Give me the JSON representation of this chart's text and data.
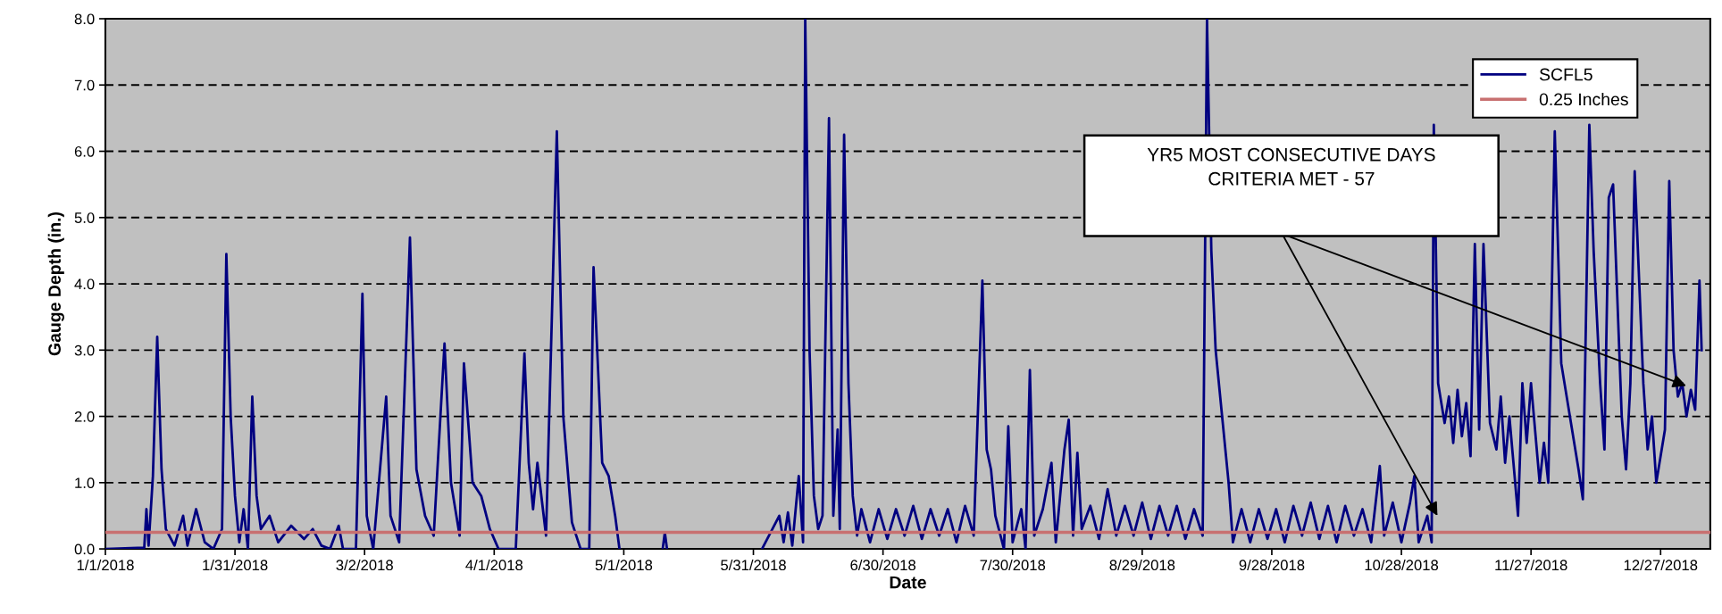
{
  "chart_data": {
    "type": "line",
    "xlabel": "Date",
    "ylabel": "Gauge Depth (in.)",
    "x": [
      "2018-01-01",
      "2018-01-10",
      "2018-01-10T12:00",
      "2018-01-11",
      "2018-01-12",
      "2018-01-13",
      "2018-01-14",
      "2018-01-15",
      "2018-01-17",
      "2018-01-19",
      "2018-01-20",
      "2018-01-22",
      "2018-01-24",
      "2018-01-26",
      "2018-01-28",
      "2018-01-29",
      "2018-01-30",
      "2018-01-31",
      "2018-02-01",
      "2018-02-02",
      "2018-02-03",
      "2018-02-04",
      "2018-02-05",
      "2018-02-06",
      "2018-02-08",
      "2018-02-10",
      "2018-02-13",
      "2018-02-16",
      "2018-02-18",
      "2018-02-20",
      "2018-02-22",
      "2018-02-24",
      "2018-02-25",
      "2018-02-28",
      "2018-03-01T12:00",
      "2018-03-02T12:00",
      "2018-03-04",
      "2018-03-07",
      "2018-03-08",
      "2018-03-10",
      "2018-03-12T12:00",
      "2018-03-14",
      "2018-03-16",
      "2018-03-18",
      "2018-03-20T12:00",
      "2018-03-22",
      "2018-03-24",
      "2018-03-25",
      "2018-03-27",
      "2018-03-29",
      "2018-03-31",
      "2018-04-02",
      "2018-04-06",
      "2018-04-08",
      "2018-04-09",
      "2018-04-10",
      "2018-04-11",
      "2018-04-13",
      "2018-04-15T12:00",
      "2018-04-17",
      "2018-04-19",
      "2018-04-21",
      "2018-04-23",
      "2018-04-24",
      "2018-04-26",
      "2018-04-27T12:00",
      "2018-04-29",
      "2018-04-30",
      "2018-05-05",
      "2018-05-10",
      "2018-05-10T12:00",
      "2018-05-11",
      "2018-05-20",
      "2018-06-02",
      "2018-06-06",
      "2018-06-07",
      "2018-06-08",
      "2018-06-09",
      "2018-06-10T12:00",
      "2018-06-11T12:00",
      "2018-06-12",
      "2018-06-13",
      "2018-06-14",
      "2018-06-15",
      "2018-06-16",
      "2018-06-17T12:00",
      "2018-06-18T12:00",
      "2018-06-19T12:00",
      "2018-06-20",
      "2018-06-21",
      "2018-06-22",
      "2018-06-23",
      "2018-06-24",
      "2018-06-25",
      "2018-06-27",
      "2018-06-29",
      "2018-07-01",
      "2018-07-03",
      "2018-07-05",
      "2018-07-07",
      "2018-07-09",
      "2018-07-11",
      "2018-07-13",
      "2018-07-15",
      "2018-07-17",
      "2018-07-19",
      "2018-07-21",
      "2018-07-23",
      "2018-07-24",
      "2018-07-25",
      "2018-07-26",
      "2018-07-28",
      "2018-07-29",
      "2018-07-30",
      "2018-08-01",
      "2018-08-02",
      "2018-08-03",
      "2018-08-04",
      "2018-08-06",
      "2018-08-08",
      "2018-08-09",
      "2018-08-11",
      "2018-08-12",
      "2018-08-13",
      "2018-08-14",
      "2018-08-15",
      "2018-08-17",
      "2018-08-19",
      "2018-08-21",
      "2018-08-23",
      "2018-08-25",
      "2018-08-27",
      "2018-08-29",
      "2018-08-31",
      "2018-09-02",
      "2018-09-04",
      "2018-09-06",
      "2018-09-08",
      "2018-09-10",
      "2018-09-12",
      "2018-09-13",
      "2018-09-14",
      "2018-09-15",
      "2018-09-16T12:00",
      "2018-09-18",
      "2018-09-19",
      "2018-09-21",
      "2018-09-23",
      "2018-09-25",
      "2018-09-27",
      "2018-09-29",
      "2018-10-01",
      "2018-10-03",
      "2018-10-05",
      "2018-10-07",
      "2018-10-09",
      "2018-10-11",
      "2018-10-13",
      "2018-10-15",
      "2018-10-17",
      "2018-10-19",
      "2018-10-21",
      "2018-10-23",
      "2018-10-24",
      "2018-10-26",
      "2018-10-28",
      "2018-10-30",
      "2018-10-31",
      "2018-11-01",
      "2018-11-03",
      "2018-11-04",
      "2018-11-04T12:00",
      "2018-11-05T12:00",
      "2018-11-07",
      "2018-11-08",
      "2018-11-09",
      "2018-11-10",
      "2018-11-11",
      "2018-11-12",
      "2018-11-13",
      "2018-11-14",
      "2018-11-15",
      "2018-11-16",
      "2018-11-17T12:00",
      "2018-11-19",
      "2018-11-20",
      "2018-11-21",
      "2018-11-22",
      "2018-11-24",
      "2018-11-25",
      "2018-11-26",
      "2018-11-27",
      "2018-11-29",
      "2018-11-30",
      "2018-12-01",
      "2018-12-02T12:00",
      "2018-12-04",
      "2018-12-06",
      "2018-12-08",
      "2018-12-09",
      "2018-12-10T12:00",
      "2018-12-11T12:00",
      "2018-12-13",
      "2018-12-14",
      "2018-12-15",
      "2018-12-16",
      "2018-12-18",
      "2018-12-19",
      "2018-12-20",
      "2018-12-21",
      "2018-12-23",
      "2018-12-24",
      "2018-12-25",
      "2018-12-26",
      "2018-12-28",
      "2018-12-29",
      "2018-12-30",
      "2018-12-31",
      "2019-01-01",
      "2019-01-02",
      "2019-01-03",
      "2019-01-04",
      "2019-01-05",
      "2019-01-05T12:00"
    ],
    "series": [
      {
        "name": "SCFL5",
        "color": "#000080",
        "values": [
          0.0,
          0.02,
          0.6,
          0.05,
          1.1,
          3.2,
          1.2,
          0.3,
          0.05,
          0.5,
          0.05,
          0.6,
          0.1,
          0.0,
          0.3,
          4.45,
          2.0,
          0.8,
          0.1,
          0.6,
          0.0,
          2.3,
          0.8,
          0.3,
          0.5,
          0.1,
          0.35,
          0.15,
          0.3,
          0.05,
          0.0,
          0.35,
          0.0,
          0.0,
          3.85,
          0.5,
          0.0,
          2.3,
          0.5,
          0.1,
          4.7,
          1.2,
          0.5,
          0.2,
          3.1,
          1.0,
          0.2,
          2.8,
          1.0,
          0.8,
          0.3,
          0.0,
          0.0,
          2.95,
          1.3,
          0.6,
          1.3,
          0.2,
          6.3,
          2.0,
          0.4,
          0.0,
          0.0,
          4.25,
          1.3,
          1.1,
          0.5,
          0.0,
          null,
          0.0,
          0.25,
          0.0,
          null,
          0.0,
          0.5,
          0.1,
          0.55,
          0.05,
          1.1,
          0.1,
          8.0,
          3.0,
          0.8,
          0.3,
          0.5,
          6.5,
          0.5,
          1.8,
          0.3,
          6.25,
          2.5,
          0.8,
          0.2,
          0.6,
          0.1,
          0.6,
          0.15,
          0.6,
          0.2,
          0.65,
          0.15,
          0.6,
          0.2,
          0.6,
          0.1,
          0.65,
          0.2,
          4.05,
          1.5,
          1.2,
          0.5,
          0.0,
          1.85,
          0.1,
          0.6,
          0.0,
          2.7,
          0.2,
          0.6,
          1.3,
          0.1,
          1.5,
          1.95,
          0.2,
          1.45,
          0.3,
          0.65,
          0.15,
          0.9,
          0.2,
          0.65,
          0.2,
          0.7,
          0.15,
          0.65,
          0.2,
          0.65,
          0.15,
          0.6,
          0.2,
          8.0,
          4.5,
          3.0,
          2.0,
          1.0,
          0.1,
          0.6,
          0.1,
          0.6,
          0.15,
          0.6,
          0.1,
          0.65,
          0.2,
          0.7,
          0.15,
          0.65,
          0.1,
          0.65,
          0.2,
          0.6,
          0.1,
          1.25,
          0.2,
          0.7,
          0.1,
          0.7,
          1.1,
          0.1,
          0.5,
          0.1,
          6.4,
          2.5,
          1.9,
          2.3,
          1.6,
          2.4,
          1.7,
          2.2,
          1.4,
          4.6,
          1.8,
          4.6,
          1.9,
          1.5,
          2.3,
          1.3,
          2.0,
          0.5,
          2.5,
          1.6,
          2.5,
          1.0,
          1.6,
          1.0,
          6.3,
          2.8,
          2.0,
          1.2,
          0.75,
          6.4,
          4.5,
          2.5,
          1.5,
          5.3,
          5.5,
          2.0,
          1.2,
          2.5,
          5.7,
          2.5,
          1.5,
          2.0,
          1.0,
          1.8,
          5.55,
          3.0,
          2.3,
          2.5,
          2.0,
          2.4,
          2.1,
          4.05,
          3.0
        ]
      }
    ],
    "ref_lines": [
      {
        "axis": "y",
        "value": 0.25,
        "label": "0.25 Inches",
        "color": "#c87070"
      }
    ],
    "xlim": [
      "2018-01-01",
      "2019-01-07T12:00"
    ],
    "xticks": [
      {
        "value": "2018-01-01",
        "label": "1/1/2018"
      },
      {
        "value": "2018-01-31",
        "label": "1/31/2018"
      },
      {
        "value": "2018-03-02",
        "label": "3/2/2018"
      },
      {
        "value": "2018-04-01",
        "label": "4/1/2018"
      },
      {
        "value": "2018-05-01",
        "label": "5/1/2018"
      },
      {
        "value": "2018-05-31",
        "label": "5/31/2018"
      },
      {
        "value": "2018-06-30",
        "label": "6/30/2018"
      },
      {
        "value": "2018-07-30",
        "label": "7/30/2018"
      },
      {
        "value": "2018-08-29",
        "label": "8/29/2018"
      },
      {
        "value": "2018-09-28",
        "label": "9/28/2018"
      },
      {
        "value": "2018-10-28",
        "label": "10/28/2018"
      },
      {
        "value": "2018-11-27",
        "label": "11/27/2018"
      },
      {
        "value": "2018-12-27",
        "label": "12/27/2018"
      }
    ],
    "ylim": [
      0,
      8
    ],
    "yticks": [
      {
        "value": 0,
        "label": "0.0"
      },
      {
        "value": 1,
        "label": "1.0"
      },
      {
        "value": 2,
        "label": "2.0"
      },
      {
        "value": 3,
        "label": "3.0"
      },
      {
        "value": 4,
        "label": "4.0"
      },
      {
        "value": 5,
        "label": "5.0"
      },
      {
        "value": 6,
        "label": "6.0"
      },
      {
        "value": 7,
        "label": "7.0"
      },
      {
        "value": 8,
        "label": "8.0"
      }
    ],
    "grid": "y",
    "legend": "top right",
    "annotations": [
      "YR5 MOST CONSECUTIVE DAYS\nCRITERIA MET - 57"
    ]
  }
}
